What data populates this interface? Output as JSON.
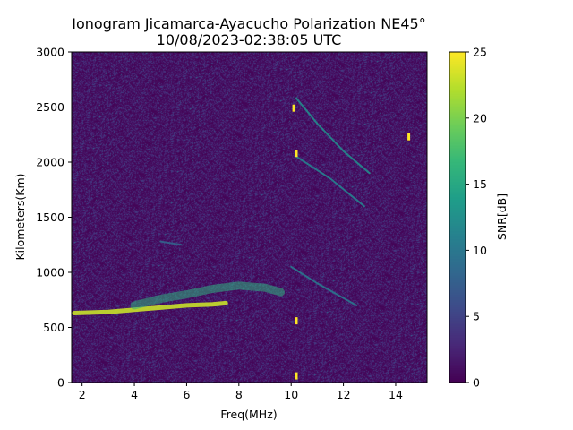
{
  "chart_data": {
    "type": "heatmap",
    "title_line1": "Ionogram Jicamarca-Ayacucho Polarization NE45°",
    "title_line2": "10/08/2023-02:38:05 UTC",
    "xlabel": "Freq(MHz)",
    "ylabel": "Kilometers(Km)",
    "colorbar_label": "SNR[dB]",
    "colormap": "viridis",
    "xlim": [
      1.6,
      15.2
    ],
    "ylim": [
      0,
      3000
    ],
    "clim": [
      0,
      25
    ],
    "xticks": [
      2,
      4,
      6,
      8,
      10,
      12,
      14
    ],
    "yticks": [
      0,
      500,
      1000,
      1500,
      2000,
      2500,
      3000
    ],
    "cticks": [
      0,
      5,
      10,
      15,
      20,
      25
    ],
    "background_snr_db": 2,
    "traces": [
      {
        "name": "F-layer main echo",
        "x": [
          1.7,
          3.0,
          4.0,
          5.0,
          6.0,
          7.0,
          7.5
        ],
        "y": [
          630,
          640,
          660,
          680,
          700,
          710,
          720
        ],
        "snr_db": 23
      },
      {
        "name": "F-layer upper band",
        "x": [
          4.0,
          5.0,
          6.0,
          7.0,
          8.0,
          9.0,
          9.6
        ],
        "y": [
          700,
          760,
          800,
          850,
          880,
          860,
          820
        ],
        "snr_db": 16
      },
      {
        "name": "multi-hop",
        "x": [
          5.0,
          5.8
        ],
        "y": [
          1280,
          1250
        ],
        "snr_db": 8
      },
      {
        "name": "oblique streak",
        "x": [
          10.2,
          11.0,
          12.0,
          13.0
        ],
        "y": [
          2580,
          2350,
          2100,
          1900
        ],
        "snr_db": 12
      },
      {
        "name": "oblique streak 2",
        "x": [
          10.2,
          11.5,
          12.8
        ],
        "y": [
          2050,
          1850,
          1600
        ],
        "snr_db": 11
      },
      {
        "name": "oblique streak 3",
        "x": [
          10.0,
          11.0,
          12.5
        ],
        "y": [
          1050,
          900,
          700
        ],
        "snr_db": 10
      }
    ],
    "hot_spots": [
      {
        "x": 10.1,
        "y": 2490,
        "snr_db": 25
      },
      {
        "x": 10.2,
        "y": 2080,
        "snr_db": 25
      },
      {
        "x": 10.2,
        "y": 560,
        "snr_db": 25
      },
      {
        "x": 10.2,
        "y": 60,
        "snr_db": 25
      },
      {
        "x": 14.5,
        "y": 2230,
        "snr_db": 25
      }
    ]
  }
}
